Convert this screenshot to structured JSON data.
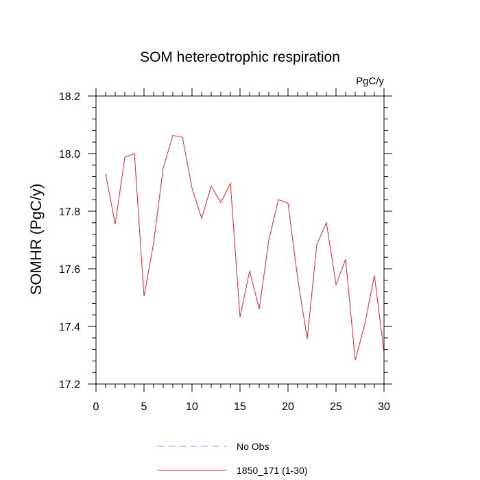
{
  "chart_data": {
    "type": "line",
    "title": "SOM hetereotrophic respiration",
    "units": "PgC/y",
    "xlabel": "",
    "ylabel": "SOMHR  (PgC/y)",
    "xlim": [
      0,
      30
    ],
    "ylim": [
      17.2,
      18.2
    ],
    "x_ticks": [
      0,
      5,
      10,
      15,
      20,
      25,
      30
    ],
    "y_ticks": [
      17.2,
      17.4,
      17.6,
      17.8,
      18.0,
      18.2
    ],
    "x_tick_labels": [
      "0",
      "5",
      "10",
      "15",
      "20",
      "25",
      "30"
    ],
    "y_tick_labels": [
      "17.2",
      "17.4",
      "17.6",
      "17.8",
      "18.0",
      "18.2"
    ],
    "grid": false,
    "legend_position": "bottom",
    "legend": [
      {
        "label": "No Obs",
        "color": "#8a8ae0",
        "style": "dashed"
      },
      {
        "label": "1850_171 (1-30)",
        "color": "#e8202a",
        "style": "solid"
      }
    ],
    "series": [
      {
        "name": "1850_171 (1-30)",
        "color": "#e8202a",
        "x": [
          1,
          2,
          3,
          4,
          5,
          6,
          7,
          8,
          9,
          10,
          11,
          12,
          13,
          14,
          15,
          16,
          17,
          18,
          19,
          20,
          21,
          22,
          23,
          24,
          25,
          26,
          27,
          28,
          29,
          30
        ],
        "y": [
          17.93,
          17.755,
          17.987,
          18.0,
          17.505,
          17.69,
          17.95,
          18.063,
          18.057,
          17.88,
          17.775,
          17.887,
          17.83,
          17.897,
          17.432,
          17.593,
          17.46,
          17.7,
          17.84,
          17.828,
          17.568,
          17.357,
          17.685,
          17.76,
          17.545,
          17.633,
          17.283,
          17.408,
          17.577,
          17.31
        ]
      }
    ]
  }
}
